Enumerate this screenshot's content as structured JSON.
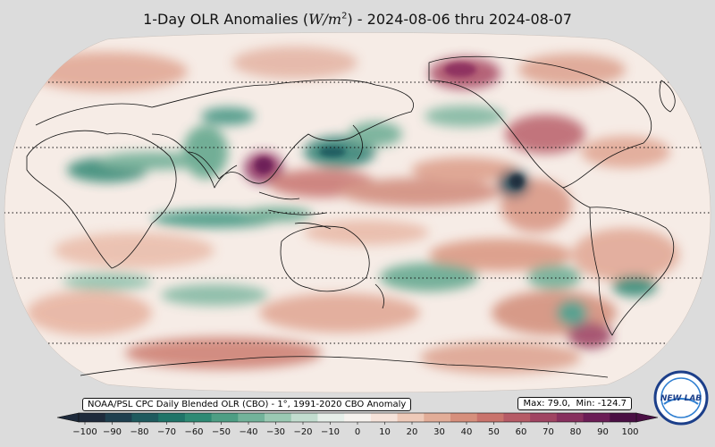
{
  "title": {
    "prefix": "1-Day OLR Anomalies (",
    "unit_main": "W/m",
    "unit_sup": "2",
    "suffix": ") - 2024-08-06 thru 2024-08-07"
  },
  "source_label": "NOAA/PSL CPC Daily Blended OLR (CBO) - 1°, 1991-2020 CBO Anomaly",
  "stats": {
    "max_label": "Max: 79.0,",
    "min_label": "Min: -124.7"
  },
  "colorbar": {
    "ticks": [
      "−100",
      "−90",
      "−80",
      "−70",
      "−60",
      "−50",
      "−40",
      "−30",
      "−20",
      "−10",
      "0",
      "10",
      "20",
      "30",
      "40",
      "50",
      "60",
      "70",
      "80",
      "90",
      "100"
    ],
    "colors": [
      "#1e2a3b",
      "#1f3f4f",
      "#1f5a5e",
      "#1f7468",
      "#2e8a74",
      "#4d9e84",
      "#72b39a",
      "#9ac9b3",
      "#c2ddcf",
      "#e6efe9",
      "#f7f3ef",
      "#f6e3da",
      "#eecab9",
      "#e2ad98",
      "#d68f7c",
      "#c9736c",
      "#b65b66",
      "#a04462",
      "#87305e",
      "#6b1d56",
      "#4a0f44"
    ]
  },
  "logo": {
    "text": "NEW LAB",
    "ring_color": "#1c3f8a",
    "accent": "#2f7fd1"
  },
  "map": {
    "projection": "Robinson",
    "center_longitude": 150,
    "parallels_dotted": [
      "60N",
      "30N",
      "0",
      "30S",
      "60S"
    ],
    "palette": {
      "negative": "#2f8a76",
      "positive": "#b9575f",
      "neutral": "#f6ece6"
    }
  }
}
